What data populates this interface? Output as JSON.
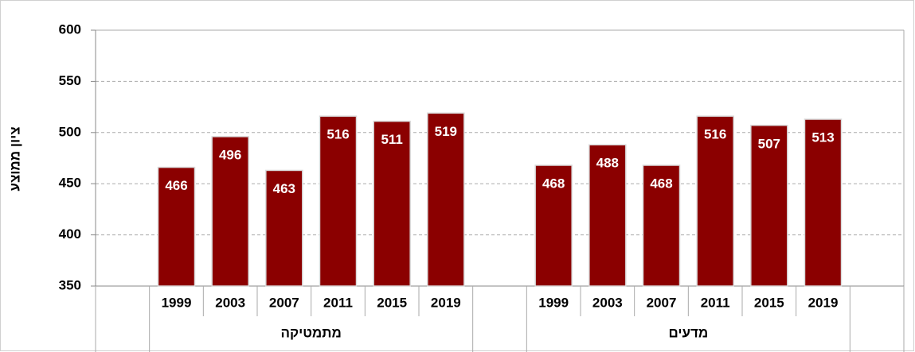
{
  "chart_data": {
    "type": "bar",
    "y_label": "ציון ממוצע",
    "groups": [
      {
        "label": "מתמטיקה",
        "categories": [
          "1999",
          "2003",
          "2007",
          "2011",
          "2015",
          "2019"
        ],
        "values": [
          466,
          496,
          463,
          516,
          511,
          519
        ]
      },
      {
        "label": "מדעים",
        "categories": [
          "1999",
          "2003",
          "2007",
          "2011",
          "2015",
          "2019"
        ],
        "values": [
          468,
          488,
          468,
          516,
          507,
          513
        ]
      }
    ],
    "color": "#8b0000",
    "ylim": [
      350,
      600
    ],
    "yticks": [
      350,
      400,
      450,
      500,
      550,
      600
    ],
    "grid": true
  }
}
